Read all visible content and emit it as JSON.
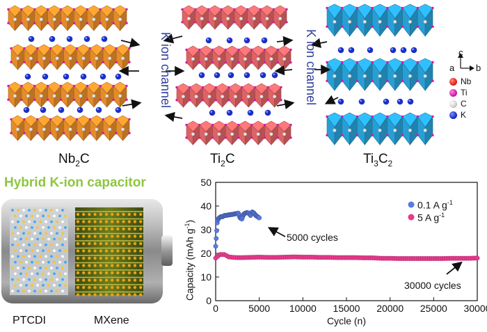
{
  "structures": {
    "nb2c": {
      "label": "Nb",
      "sub": "2",
      "tail": "C",
      "color": "#f0922c"
    },
    "ti2c": {
      "label": "Ti",
      "sub": "2",
      "tail": "C",
      "color": "#e9686a"
    },
    "ti3c2": {
      "label": "Ti",
      "sub": "3",
      "tail": "C",
      "sub2": "2",
      "color": "#2aa7df"
    }
  },
  "channel_label_1": "K ion channel",
  "channel_label_2": "K ion channel",
  "axes_legend": {
    "c": "c",
    "a": "a",
    "b": "b"
  },
  "element_legend": [
    {
      "name": "Nb",
      "color": "#e8201c"
    },
    {
      "name": "Ti",
      "color": "#d41aa8"
    },
    {
      "name": "C",
      "color": "#cfcfcf"
    },
    {
      "name": "K",
      "color": "#1a2fc8"
    }
  ],
  "capacitor": {
    "title": "Hybrid K-ion capacitor",
    "left_label": "PTCDI",
    "right_label": "MXene"
  },
  "chart_data": {
    "type": "scatter",
    "xlabel": "Cycle (n)",
    "ylabel_main": "Capacity (mAh g",
    "ylabel_sup": "-1",
    "ylabel_end": ")",
    "xlim": [
      0,
      30000
    ],
    "ylim": [
      0,
      50
    ],
    "xticks": [
      0,
      5000,
      10000,
      15000,
      20000,
      25000,
      30000
    ],
    "yticks": [
      0,
      10,
      20,
      30,
      40,
      50
    ],
    "series": [
      {
        "name": "0.1 A g",
        "name_sup": "-1",
        "color": "#5a7be0",
        "x": [
          0,
          200,
          400,
          600,
          800,
          1000,
          1200,
          1400,
          1600,
          1800,
          2000,
          2200,
          2400,
          2600,
          2800,
          3000,
          3200,
          3400,
          3600,
          3800,
          4000,
          4200,
          4400,
          4600,
          4800,
          5000
        ],
        "y": [
          23,
          34,
          35,
          35.5,
          35.5,
          36,
          36,
          36.2,
          36.3,
          36.4,
          36.5,
          36.7,
          36.8,
          37,
          35,
          34.5,
          36.5,
          37,
          37.2,
          37,
          36,
          37.5,
          37,
          36,
          35.5,
          35
        ]
      },
      {
        "name": "5 A g",
        "name_sup": "-1",
        "color": "#e83a8c",
        "x": [
          0,
          500,
          1000,
          1500,
          2000,
          2500,
          3000,
          4000,
          5000,
          6000,
          7000,
          8000,
          9000,
          10000,
          11000,
          12000,
          13000,
          14000,
          15000,
          16000,
          17000,
          18000,
          19000,
          20000,
          21000,
          22000,
          23000,
          24000,
          25000,
          26000,
          27000,
          28000,
          29000,
          30000
        ],
        "y": [
          18,
          19.5,
          19.5,
          18.5,
          18.3,
          18.2,
          18.2,
          18.3,
          18.4,
          18.3,
          18.3,
          18.4,
          18.5,
          18.4,
          18.4,
          18.3,
          18.3,
          18.2,
          18.2,
          18.2,
          18.1,
          18.1,
          17.9,
          17.9,
          17.8,
          17.8,
          17.8,
          17.8,
          17.8,
          17.8,
          17.9,
          17.9,
          17.9,
          18
        ]
      }
    ],
    "annotations": [
      {
        "text": "5000 cycles"
      },
      {
        "text": "30000 cycles"
      }
    ]
  }
}
